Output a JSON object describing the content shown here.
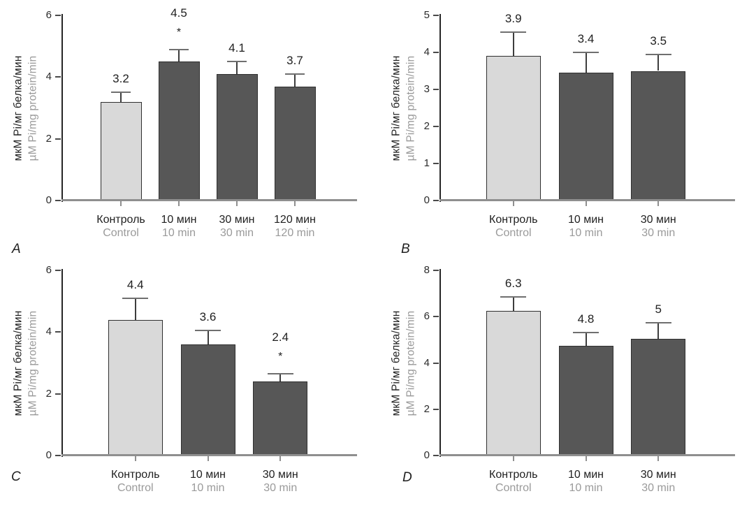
{
  "colors": {
    "background": "#ffffff",
    "bar_light": "#d9d9d9",
    "bar_dark": "#575757",
    "bar_border": "#2f2f2f",
    "axis_line": "#262626",
    "baseline": "#8f8f8f",
    "xtick": "#8f8f8f",
    "ytick_dash": "#4a4a4a",
    "error_stem": "#3d3d3d",
    "error_cap": "#6f6f6f",
    "text_primary": "#1f1f1f",
    "text_secondary": "#9a9a9a",
    "tick_text": "#2b2b2b"
  },
  "chart_data": [
    {
      "type": "bar",
      "panel_letter": "A",
      "ylabel_ru": "мкМ Pi/мг белка/мин",
      "ylabel_en": "µM Pi/mg protein/min",
      "ylim": [
        0,
        6
      ],
      "yticks": [
        0,
        2,
        4,
        6
      ],
      "grid": "off",
      "categories_ru": [
        "Контроль",
        "10 мин",
        "30 мин",
        "120 мин"
      ],
      "categories_en": [
        "Control",
        "10 min",
        "30 min",
        "120 min"
      ],
      "values": [
        3.2,
        4.5,
        4.1,
        3.7
      ],
      "value_labels": [
        "3.2",
        "4.5",
        "4.1",
        "3.7"
      ],
      "errors": [
        0.3,
        0.4,
        0.4,
        0.4
      ],
      "significance": [
        "",
        "*",
        "",
        ""
      ],
      "bar_variants": [
        "light",
        "dark",
        "dark",
        "dark"
      ]
    },
    {
      "type": "bar",
      "panel_letter": "B",
      "ylabel_ru": "мкМ Pi/мг белка/мин",
      "ylabel_en": "µM Pi/mg protein/min",
      "ylim": [
        0,
        5
      ],
      "yticks": [
        0,
        1,
        2,
        3,
        4,
        5
      ],
      "grid": "off",
      "categories_ru": [
        "Контроль",
        "10 мин",
        "30 мин"
      ],
      "categories_en": [
        "Control",
        "10 min",
        "30 min"
      ],
      "values": [
        3.9,
        3.45,
        3.5
      ],
      "value_labels": [
        "3.9",
        "3.4",
        "3.5"
      ],
      "errors": [
        0.65,
        0.55,
        0.45
      ],
      "significance": [
        "",
        "",
        ""
      ],
      "bar_variants": [
        "light",
        "dark",
        "dark"
      ]
    },
    {
      "type": "bar",
      "panel_letter": "C",
      "ylabel_ru": "мкМ Pi/мг белка/мин",
      "ylabel_en": "µM Pi/mg protein/min",
      "ylim": [
        0,
        6
      ],
      "yticks": [
        0,
        2,
        4,
        6
      ],
      "grid": "off",
      "categories_ru": [
        "Контроль",
        "10 мин",
        "30 мин"
      ],
      "categories_en": [
        "Control",
        "10 min",
        "30 min"
      ],
      "values": [
        4.4,
        3.6,
        2.4
      ],
      "value_labels": [
        "4.4",
        "3.6",
        "2.4"
      ],
      "errors": [
        0.7,
        0.45,
        0.25
      ],
      "significance": [
        "",
        "",
        "*"
      ],
      "bar_variants": [
        "light",
        "dark",
        "dark"
      ]
    },
    {
      "type": "bar",
      "panel_letter": "D",
      "ylabel_ru": "мкМ Pi/мг белка/мин",
      "ylabel_en": "µM Pi/mg protein/min",
      "ylim": [
        0,
        8
      ],
      "yticks": [
        0,
        2,
        4,
        6,
        8
      ],
      "grid": "off",
      "categories_ru": [
        "Контроль",
        "10 мин",
        "30 мин"
      ],
      "categories_en": [
        "Control",
        "10 min",
        "30 min"
      ],
      "values": [
        6.25,
        4.75,
        5.05
      ],
      "value_labels": [
        "6.3",
        "4.8",
        "5"
      ],
      "errors": [
        0.6,
        0.55,
        0.7
      ],
      "significance": [
        "",
        "",
        ""
      ],
      "bar_variants": [
        "light",
        "dark",
        "dark"
      ]
    }
  ]
}
